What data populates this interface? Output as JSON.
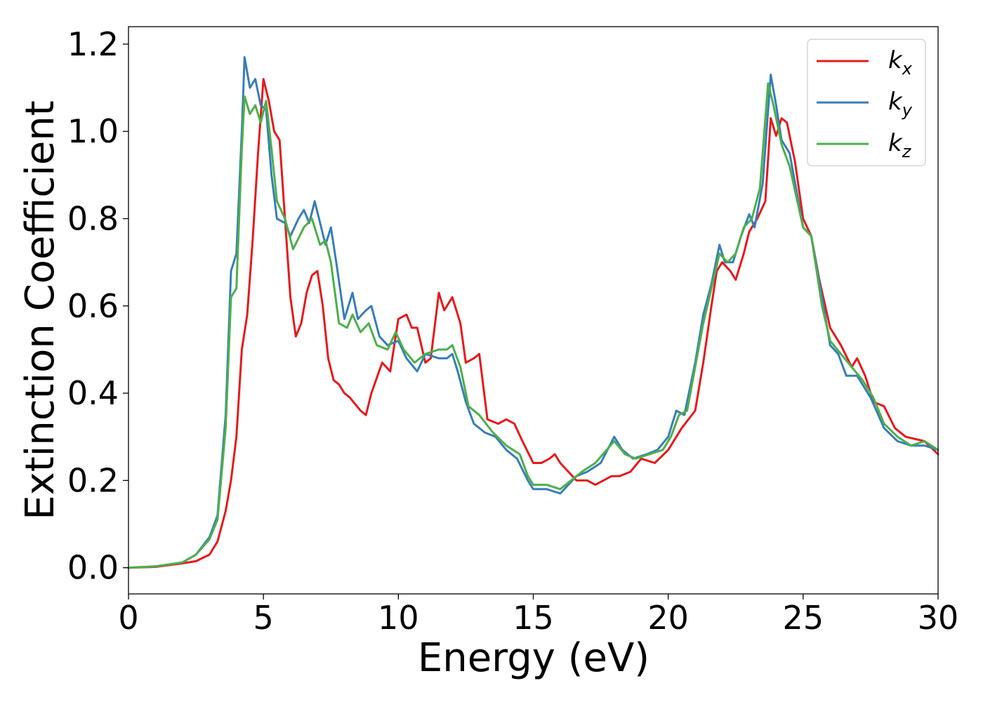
{
  "chart_data": {
    "type": "line",
    "title": "",
    "xlabel": "Energy (eV)",
    "ylabel": "Extinction Coefficient",
    "xlim": [
      0,
      30
    ],
    "ylim": [
      -0.06,
      1.24
    ],
    "xticks": [
      0,
      5,
      10,
      15,
      20,
      25,
      30
    ],
    "xtick_labels": [
      "0",
      "5",
      "10",
      "15",
      "20",
      "25",
      "30"
    ],
    "yticks": [
      0.0,
      0.2,
      0.4,
      0.6,
      0.8,
      1.0,
      1.2
    ],
    "ytick_labels": [
      "0.0",
      "0.2",
      "0.4",
      "0.6",
      "0.8",
      "1.0",
      "1.2"
    ],
    "grid": false,
    "legend_position": "top-right",
    "series": [
      {
        "name": "k_x",
        "label_base": "k",
        "label_sub": "x",
        "color": "#e41a1c",
        "points": [
          [
            0,
            0
          ],
          [
            1,
            0.002
          ],
          [
            2,
            0.01
          ],
          [
            2.5,
            0.015
          ],
          [
            3,
            0.03
          ],
          [
            3.3,
            0.06
          ],
          [
            3.6,
            0.13
          ],
          [
            3.8,
            0.2
          ],
          [
            4,
            0.3
          ],
          [
            4.2,
            0.5
          ],
          [
            4.4,
            0.58
          ],
          [
            4.6,
            0.75
          ],
          [
            4.8,
            0.95
          ],
          [
            5,
            1.12
          ],
          [
            5.2,
            1.07
          ],
          [
            5.4,
            1.0
          ],
          [
            5.6,
            0.98
          ],
          [
            5.8,
            0.8
          ],
          [
            6,
            0.62
          ],
          [
            6.2,
            0.53
          ],
          [
            6.4,
            0.56
          ],
          [
            6.6,
            0.63
          ],
          [
            6.8,
            0.67
          ],
          [
            7,
            0.68
          ],
          [
            7.2,
            0.6
          ],
          [
            7.4,
            0.48
          ],
          [
            7.6,
            0.43
          ],
          [
            7.8,
            0.42
          ],
          [
            8,
            0.4
          ],
          [
            8.2,
            0.39
          ],
          [
            8.6,
            0.36
          ],
          [
            8.8,
            0.35
          ],
          [
            9,
            0.4
          ],
          [
            9.4,
            0.47
          ],
          [
            9.7,
            0.45
          ],
          [
            10,
            0.57
          ],
          [
            10.3,
            0.58
          ],
          [
            10.5,
            0.55
          ],
          [
            10.7,
            0.55
          ],
          [
            11,
            0.47
          ],
          [
            11.2,
            0.48
          ],
          [
            11.5,
            0.63
          ],
          [
            11.7,
            0.59
          ],
          [
            12,
            0.62
          ],
          [
            12.3,
            0.56
          ],
          [
            12.5,
            0.47
          ],
          [
            12.8,
            0.48
          ],
          [
            13,
            0.49
          ],
          [
            13.3,
            0.34
          ],
          [
            13.7,
            0.33
          ],
          [
            14,
            0.34
          ],
          [
            14.3,
            0.33
          ],
          [
            14.6,
            0.29
          ],
          [
            15,
            0.24
          ],
          [
            15.3,
            0.24
          ],
          [
            15.6,
            0.25
          ],
          [
            15.8,
            0.26
          ],
          [
            16,
            0.24
          ],
          [
            16.3,
            0.22
          ],
          [
            16.6,
            0.2
          ],
          [
            17,
            0.2
          ],
          [
            17.3,
            0.19
          ],
          [
            17.6,
            0.2
          ],
          [
            17.9,
            0.21
          ],
          [
            18.2,
            0.21
          ],
          [
            18.6,
            0.22
          ],
          [
            19,
            0.25
          ],
          [
            19.5,
            0.24
          ],
          [
            20,
            0.27
          ],
          [
            20.5,
            0.32
          ],
          [
            21,
            0.36
          ],
          [
            21.3,
            0.47
          ],
          [
            21.6,
            0.6
          ],
          [
            21.8,
            0.68
          ],
          [
            22,
            0.7
          ],
          [
            22.3,
            0.68
          ],
          [
            22.5,
            0.66
          ],
          [
            22.8,
            0.72
          ],
          [
            23,
            0.77
          ],
          [
            23.3,
            0.8
          ],
          [
            23.6,
            0.84
          ],
          [
            23.8,
            1.03
          ],
          [
            24,
            0.99
          ],
          [
            24.2,
            1.03
          ],
          [
            24.4,
            1.02
          ],
          [
            24.7,
            0.93
          ],
          [
            25,
            0.8
          ],
          [
            25.3,
            0.76
          ],
          [
            25.6,
            0.66
          ],
          [
            26,
            0.55
          ],
          [
            26.4,
            0.51
          ],
          [
            26.8,
            0.46
          ],
          [
            27,
            0.48
          ],
          [
            27.3,
            0.44
          ],
          [
            27.6,
            0.38
          ],
          [
            28,
            0.37
          ],
          [
            28.4,
            0.32
          ],
          [
            28.8,
            0.3
          ],
          [
            29.5,
            0.29
          ],
          [
            30,
            0.26
          ]
        ]
      },
      {
        "name": "k_y",
        "label_base": "k",
        "label_sub": "y",
        "color": "#377eb8",
        "points": [
          [
            0,
            0
          ],
          [
            1,
            0.003
          ],
          [
            2,
            0.012
          ],
          [
            2.5,
            0.03
          ],
          [
            3,
            0.07
          ],
          [
            3.3,
            0.12
          ],
          [
            3.6,
            0.35
          ],
          [
            3.8,
            0.68
          ],
          [
            4,
            0.72
          ],
          [
            4.2,
            1.0
          ],
          [
            4.3,
            1.17
          ],
          [
            4.5,
            1.1
          ],
          [
            4.7,
            1.12
          ],
          [
            4.9,
            1.06
          ],
          [
            5.1,
            1.05
          ],
          [
            5.3,
            0.9
          ],
          [
            5.5,
            0.8
          ],
          [
            5.8,
            0.79
          ],
          [
            6,
            0.76
          ],
          [
            6.3,
            0.8
          ],
          [
            6.5,
            0.82
          ],
          [
            6.7,
            0.79
          ],
          [
            6.9,
            0.84
          ],
          [
            7.1,
            0.79
          ],
          [
            7.3,
            0.74
          ],
          [
            7.5,
            0.78
          ],
          [
            7.7,
            0.7
          ],
          [
            8,
            0.57
          ],
          [
            8.3,
            0.63
          ],
          [
            8.5,
            0.57
          ],
          [
            8.8,
            0.59
          ],
          [
            9,
            0.6
          ],
          [
            9.3,
            0.53
          ],
          [
            9.6,
            0.51
          ],
          [
            10,
            0.52
          ],
          [
            10.3,
            0.48
          ],
          [
            10.7,
            0.45
          ],
          [
            11,
            0.49
          ],
          [
            11.5,
            0.48
          ],
          [
            11.8,
            0.48
          ],
          [
            12,
            0.49
          ],
          [
            12.2,
            0.45
          ],
          [
            12.5,
            0.38
          ],
          [
            12.8,
            0.33
          ],
          [
            13.2,
            0.31
          ],
          [
            13.6,
            0.3
          ],
          [
            14,
            0.27
          ],
          [
            14.4,
            0.25
          ],
          [
            14.8,
            0.2
          ],
          [
            15,
            0.18
          ],
          [
            15.5,
            0.18
          ],
          [
            16,
            0.17
          ],
          [
            16.3,
            0.19
          ],
          [
            16.6,
            0.21
          ],
          [
            17,
            0.22
          ],
          [
            17.5,
            0.24
          ],
          [
            18,
            0.3
          ],
          [
            18.3,
            0.27
          ],
          [
            18.7,
            0.25
          ],
          [
            19.2,
            0.26
          ],
          [
            19.6,
            0.27
          ],
          [
            20,
            0.3
          ],
          [
            20.3,
            0.36
          ],
          [
            20.6,
            0.35
          ],
          [
            21,
            0.47
          ],
          [
            21.3,
            0.58
          ],
          [
            21.6,
            0.65
          ],
          [
            21.9,
            0.74
          ],
          [
            22.1,
            0.7
          ],
          [
            22.4,
            0.7
          ],
          [
            22.7,
            0.76
          ],
          [
            23,
            0.81
          ],
          [
            23.2,
            0.78
          ],
          [
            23.5,
            0.88
          ],
          [
            23.8,
            1.13
          ],
          [
            24,
            1.06
          ],
          [
            24.2,
            0.98
          ],
          [
            24.5,
            0.95
          ],
          [
            25,
            0.78
          ],
          [
            25.3,
            0.76
          ],
          [
            25.7,
            0.62
          ],
          [
            26,
            0.51
          ],
          [
            26.3,
            0.49
          ],
          [
            26.6,
            0.44
          ],
          [
            27,
            0.44
          ],
          [
            27.5,
            0.39
          ],
          [
            28,
            0.32
          ],
          [
            28.5,
            0.29
          ],
          [
            29,
            0.28
          ],
          [
            29.5,
            0.28
          ],
          [
            30,
            0.27
          ]
        ]
      },
      {
        "name": "k_z",
        "label_base": "k",
        "label_sub": "z",
        "color": "#4daf4a",
        "points": [
          [
            0,
            0
          ],
          [
            1,
            0.003
          ],
          [
            2,
            0.012
          ],
          [
            2.5,
            0.03
          ],
          [
            3,
            0.065
          ],
          [
            3.3,
            0.11
          ],
          [
            3.6,
            0.32
          ],
          [
            3.8,
            0.62
          ],
          [
            4,
            0.64
          ],
          [
            4.2,
            0.96
          ],
          [
            4.3,
            1.08
          ],
          [
            4.5,
            1.04
          ],
          [
            4.7,
            1.06
          ],
          [
            4.9,
            1.02
          ],
          [
            5.1,
            1.07
          ],
          [
            5.3,
            0.96
          ],
          [
            5.5,
            0.84
          ],
          [
            5.8,
            0.8
          ],
          [
            6.1,
            0.73
          ],
          [
            6.5,
            0.78
          ],
          [
            6.8,
            0.8
          ],
          [
            7.1,
            0.74
          ],
          [
            7.3,
            0.75
          ],
          [
            7.5,
            0.7
          ],
          [
            7.8,
            0.56
          ],
          [
            8.1,
            0.55
          ],
          [
            8.3,
            0.58
          ],
          [
            8.6,
            0.54
          ],
          [
            8.9,
            0.56
          ],
          [
            9.2,
            0.51
          ],
          [
            9.6,
            0.5
          ],
          [
            9.9,
            0.54
          ],
          [
            10.2,
            0.5
          ],
          [
            10.6,
            0.47
          ],
          [
            11,
            0.49
          ],
          [
            11.5,
            0.5
          ],
          [
            11.8,
            0.5
          ],
          [
            12,
            0.51
          ],
          [
            12.3,
            0.46
          ],
          [
            12.6,
            0.37
          ],
          [
            13,
            0.35
          ],
          [
            13.5,
            0.31
          ],
          [
            14,
            0.28
          ],
          [
            14.5,
            0.26
          ],
          [
            14.8,
            0.21
          ],
          [
            15,
            0.19
          ],
          [
            15.5,
            0.19
          ],
          [
            16,
            0.18
          ],
          [
            16.4,
            0.2
          ],
          [
            16.8,
            0.22
          ],
          [
            17.3,
            0.24
          ],
          [
            18,
            0.29
          ],
          [
            18.4,
            0.26
          ],
          [
            18.8,
            0.25
          ],
          [
            19.3,
            0.26
          ],
          [
            19.8,
            0.27
          ],
          [
            20.1,
            0.3
          ],
          [
            20.4,
            0.35
          ],
          [
            20.7,
            0.36
          ],
          [
            21,
            0.46
          ],
          [
            21.3,
            0.56
          ],
          [
            21.6,
            0.64
          ],
          [
            21.9,
            0.72
          ],
          [
            22.2,
            0.7
          ],
          [
            22.5,
            0.72
          ],
          [
            22.8,
            0.78
          ],
          [
            23.1,
            0.8
          ],
          [
            23.4,
            0.87
          ],
          [
            23.7,
            1.11
          ],
          [
            23.9,
            1.06
          ],
          [
            24.2,
            0.97
          ],
          [
            24.5,
            0.92
          ],
          [
            25,
            0.78
          ],
          [
            25.3,
            0.76
          ],
          [
            25.7,
            0.6
          ],
          [
            26,
            0.52
          ],
          [
            26.4,
            0.49
          ],
          [
            26.8,
            0.46
          ],
          [
            27.2,
            0.43
          ],
          [
            27.6,
            0.39
          ],
          [
            28,
            0.33
          ],
          [
            28.5,
            0.3
          ],
          [
            29,
            0.28
          ],
          [
            29.5,
            0.29
          ],
          [
            30,
            0.27
          ]
        ]
      }
    ]
  }
}
